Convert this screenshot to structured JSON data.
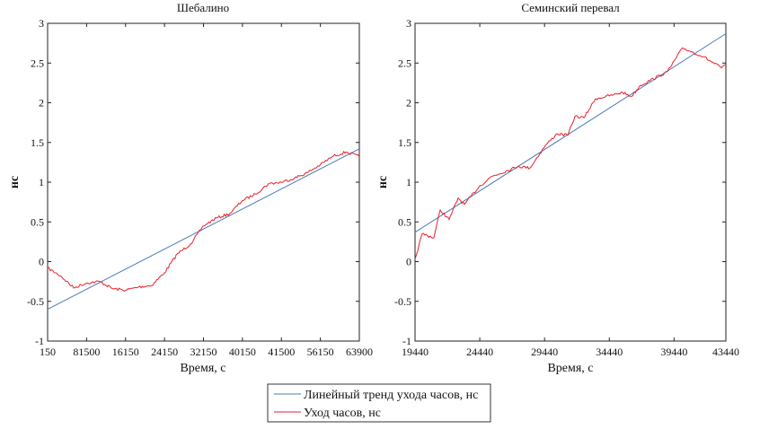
{
  "chart_data": [
    {
      "type": "line",
      "title": "Шебалино",
      "xlabel": "Время, с",
      "ylabel": "нс",
      "ylim": [
        -1,
        3
      ],
      "yticks": [
        "-1",
        "-0.5",
        "0",
        "0.5",
        "1",
        "1.5",
        "2",
        "2.5",
        "3"
      ],
      "xticks": [
        "150",
        "81500",
        "16150",
        "24150",
        "32150",
        "40150",
        "41500",
        "56150",
        "63900"
      ],
      "grid": false,
      "series": [
        {
          "name": "Линейный тренд ухода часов, нс",
          "color": "#4a7ab8",
          "values": [
            -0.6,
            1.42
          ]
        },
        {
          "name": "Уход часов, нс",
          "color": "#e8202a",
          "values": [
            -0.08,
            -0.18,
            -0.33,
            -0.27,
            -0.25,
            -0.34,
            -0.36,
            -0.32,
            -0.3,
            -0.14,
            0.1,
            0.22,
            0.45,
            0.55,
            0.6,
            0.77,
            0.85,
            0.98,
            1.0,
            1.05,
            1.12,
            1.22,
            1.33,
            1.38,
            1.32
          ]
        }
      ]
    },
    {
      "type": "line",
      "title": "Семинский перевал",
      "xlabel": "Время, с",
      "ylabel": "нс",
      "xlim": [
        19440,
        43440
      ],
      "ylim": [
        -1,
        3
      ],
      "yticks": [
        "-1",
        "-0.5",
        "0",
        "0.5",
        "1",
        "1.5",
        "2",
        "2.5",
        "3"
      ],
      "xticks": [
        "19440",
        "24440",
        "29440",
        "34440",
        "39440",
        "43440"
      ],
      "grid": false,
      "series": [
        {
          "name": "Линейный тренд ухода часов, нс",
          "color": "#4a7ab8",
          "x": [
            19440,
            43440
          ],
          "y": [
            0.37,
            2.87
          ]
        },
        {
          "name": "Уход часов, нс",
          "color": "#e8202a",
          "x": [
            19440,
            19995,
            20896,
            21382,
            22075,
            22769,
            23254,
            24364,
            25335,
            27415,
            28316,
            29496,
            30397,
            31229,
            31784,
            32477,
            33379,
            34766,
            35459,
            36152,
            36846,
            38926,
            40105,
            41700,
            43087,
            43440
          ],
          "y": [
            0.03,
            0.35,
            0.3,
            0.65,
            0.53,
            0.8,
            0.72,
            0.94,
            1.07,
            1.2,
            1.18,
            1.46,
            1.61,
            1.59,
            1.83,
            1.81,
            2.05,
            2.1,
            2.13,
            2.08,
            2.22,
            2.39,
            2.69,
            2.58,
            2.44,
            2.48
          ]
        }
      ]
    }
  ],
  "legend": {
    "items": [
      {
        "label": "Линейный тренд ухода часов, нс",
        "color": "#4a7ab8"
      },
      {
        "label": "Уход часов, нс",
        "color": "#e8202a"
      }
    ]
  }
}
